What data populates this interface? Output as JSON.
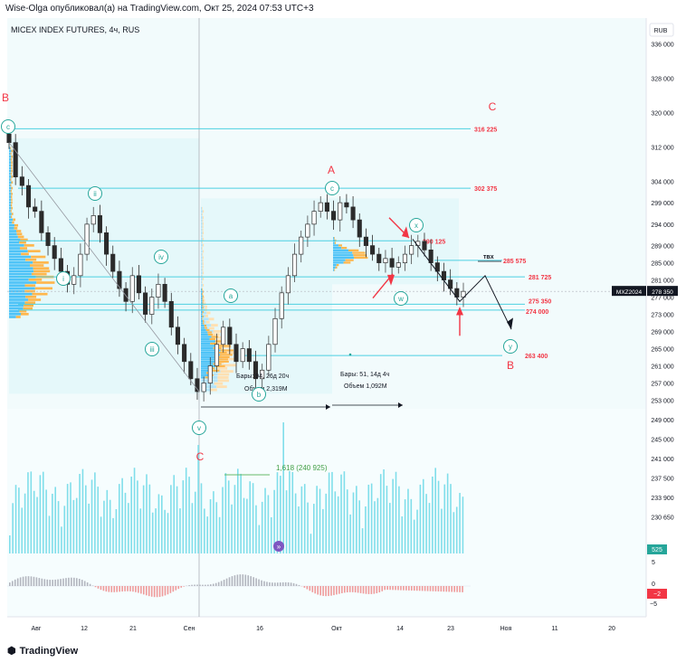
{
  "header": {
    "title": "Wise-Olga опубликовал(а) на TradingView.com, Окт 25, 2024 07:53 UTC+3"
  },
  "footer": {
    "logo": "TradingView"
  },
  "chart_data": {
    "type": "candlestick",
    "title": "MICEX INDEX FUTURES, 4ч, RUS",
    "currency": "RUB",
    "y_ticks": [
      336000,
      328000,
      320000,
      312000,
      304000,
      299000,
      294000,
      289000,
      285000,
      281000,
      277000,
      273000,
      269000,
      265000,
      261000,
      257000,
      253000,
      249000,
      245000,
      241000,
      237500,
      233900,
      230650
    ],
    "x_ticks": [
      "Авг",
      "12",
      "21",
      "Сен",
      "16",
      "Окт",
      "14",
      "23",
      "Ноя",
      "11",
      "20"
    ],
    "last_price": {
      "symbol": "MXZ2024",
      "value": "278 350"
    },
    "levels": [
      {
        "label": "316 225",
        "value": 316225,
        "color": "#f23645"
      },
      {
        "label": "302 375",
        "value": 302375,
        "color": "#f23645"
      },
      {
        "label": "290 125",
        "value": 290125,
        "color": "#f23645"
      },
      {
        "label": "285 575",
        "value": 285575,
        "color": "#f23645"
      },
      {
        "label": "281 725",
        "value": 281725,
        "color": "#f23645"
      },
      {
        "label": "275 350",
        "value": 275350,
        "color": "#f23645"
      },
      {
        "label": "274 000",
        "value": 274000,
        "color": "#f23645"
      },
      {
        "label": "263 400",
        "value": 263400,
        "color": "#f23645"
      }
    ],
    "wave_labels_circled": [
      "ii",
      "iv",
      "iii",
      "i",
      "v",
      "a",
      "b",
      "c",
      "x",
      "w",
      "y",
      "c"
    ],
    "wave_labels_red": [
      "A",
      "B",
      "C",
      "C"
    ],
    "annotations": {
      "range1": {
        "bars": "Бары: 94, 26д 20ч",
        "volume": "Объем 2,319M"
      },
      "range2": {
        "bars": "Бары: 51, 14д 4ч",
        "volume": "Объем 1,092M"
      },
      "fib": "1,618 (240 925)",
      "tvx": "твх"
    },
    "volume_axis": [
      "5",
      "0",
      "−5"
    ],
    "osc_value": "−2",
    "vol_value": "525",
    "price_series_close": [
      313000,
      305000,
      303000,
      298000,
      297000,
      292000,
      289000,
      286000,
      283000,
      280000,
      282000,
      287000,
      294000,
      296000,
      292000,
      287000,
      283000,
      279000,
      276000,
      282000,
      278000,
      273000,
      277000,
      280000,
      276000,
      270000,
      266000,
      262000,
      258000,
      255000,
      257000,
      261000,
      266000,
      270000,
      266000,
      262000,
      265000,
      262000,
      258000,
      260000,
      266000,
      272000,
      278000,
      282000,
      287000,
      291000,
      294000,
      297000,
      299000,
      297000,
      295000,
      299000,
      298000,
      295000,
      291000,
      289000,
      287000,
      285000,
      286000,
      284000,
      285000,
      287000,
      289000,
      290000,
      288000,
      285000,
      283000,
      281000,
      279000,
      277000,
      278350
    ],
    "colors": {
      "up": "#26a69a",
      "down": "#ef5350",
      "level": "#4dd0e1",
      "accent_red": "#f23645",
      "wave_green": "#26a69a",
      "bg_zone": "#e0f7fa",
      "vol": "#80deea"
    }
  }
}
